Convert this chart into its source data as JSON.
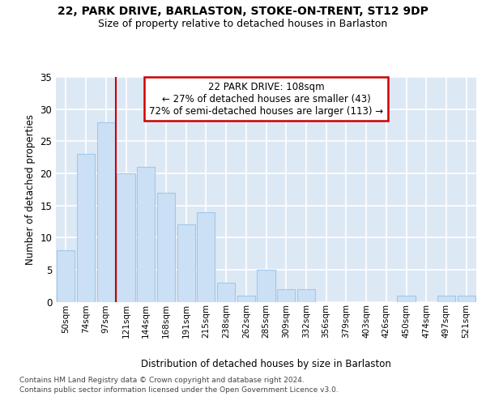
{
  "title1": "22, PARK DRIVE, BARLASTON, STOKE-ON-TRENT, ST12 9DP",
  "title2": "Size of property relative to detached houses in Barlaston",
  "xlabel": "Distribution of detached houses by size in Barlaston",
  "ylabel": "Number of detached properties",
  "categories": [
    "50sqm",
    "74sqm",
    "97sqm",
    "121sqm",
    "144sqm",
    "168sqm",
    "191sqm",
    "215sqm",
    "238sqm",
    "262sqm",
    "285sqm",
    "309sqm",
    "332sqm",
    "356sqm",
    "379sqm",
    "403sqm",
    "426sqm",
    "450sqm",
    "474sqm",
    "497sqm",
    "521sqm"
  ],
  "values": [
    8,
    23,
    28,
    20,
    21,
    17,
    12,
    14,
    3,
    1,
    5,
    2,
    2,
    0,
    0,
    0,
    0,
    1,
    0,
    1,
    1
  ],
  "bar_color": "#cce0f5",
  "bar_edge_color": "#a0c8e8",
  "red_line_x": 3.0,
  "annotation_line1": "22 PARK DRIVE: 108sqm",
  "annotation_line2": "← 27% of detached houses are smaller (43)",
  "annotation_line3": "72% of semi-detached houses are larger (113) →",
  "red_line_color": "#cc0000",
  "ylim": [
    0,
    35
  ],
  "yticks": [
    0,
    5,
    10,
    15,
    20,
    25,
    30,
    35
  ],
  "footnote1": "Contains HM Land Registry data © Crown copyright and database right 2024.",
  "footnote2": "Contains public sector information licensed under the Open Government Licence v3.0.",
  "plot_bg_color": "#dde8f5"
}
